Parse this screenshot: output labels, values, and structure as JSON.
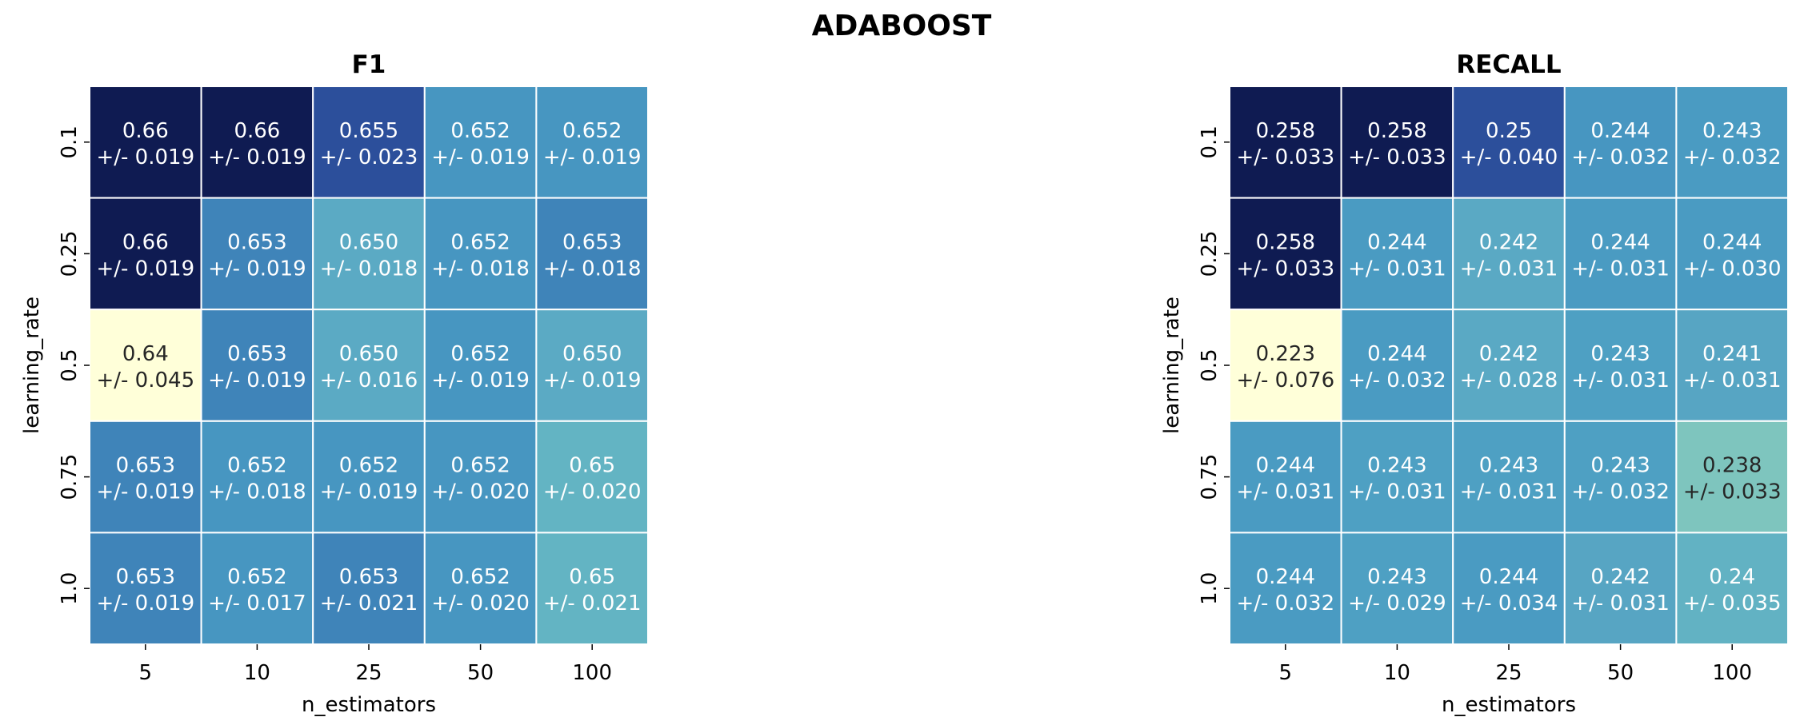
{
  "title": "ADABOOST",
  "chart_data": [
    {
      "type": "heatmap",
      "title": "F1",
      "xlabel": "n_estimators",
      "ylabel": "learning_rate",
      "x": [
        "5",
        "10",
        "25",
        "50",
        "100"
      ],
      "y": [
        "0.1",
        "0.25",
        "0.5",
        "0.75",
        "1.0"
      ],
      "values": [
        [
          0.66,
          0.66,
          0.655,
          0.652,
          0.652
        ],
        [
          0.66,
          0.653,
          0.65,
          0.652,
          0.653
        ],
        [
          0.64,
          0.653,
          0.65,
          0.652,
          0.65
        ],
        [
          0.653,
          0.652,
          0.652,
          0.652,
          0.65
        ],
        [
          0.653,
          0.652,
          0.653,
          0.652,
          0.65
        ]
      ],
      "labels": [
        [
          "0.66",
          "0.66",
          "0.655",
          "0.652",
          "0.652"
        ],
        [
          "0.66",
          "0.653",
          "0.650",
          "0.652",
          "0.653"
        ],
        [
          "0.64",
          "0.653",
          "0.650",
          "0.652",
          "0.650"
        ],
        [
          "0.653",
          "0.652",
          "0.652",
          "0.652",
          "0.65"
        ],
        [
          "0.653",
          "0.652",
          "0.653",
          "0.652",
          "0.65"
        ]
      ],
      "errors": [
        [
          "+/- 0.019",
          "+/- 0.019",
          "+/- 0.023",
          "+/- 0.019",
          "+/- 0.019"
        ],
        [
          "+/- 0.019",
          "+/- 0.019",
          "+/- 0.018",
          "+/- 0.018",
          "+/- 0.018"
        ],
        [
          "+/- 0.045",
          "+/- 0.019",
          "+/- 0.016",
          "+/- 0.019",
          "+/- 0.019"
        ],
        [
          "+/- 0.019",
          "+/- 0.018",
          "+/- 0.019",
          "+/- 0.020",
          "+/- 0.020"
        ],
        [
          "+/- 0.019",
          "+/- 0.017",
          "+/- 0.021",
          "+/- 0.020",
          "+/- 0.021"
        ]
      ],
      "cell_colors": [
        [
          "#0f1b52",
          "#0f1b52",
          "#2c4f9b",
          "#4796c1",
          "#4796c1"
        ],
        [
          "#0f1b52",
          "#3f84b9",
          "#5baac4",
          "#4796c1",
          "#3f84b9"
        ],
        [
          "#ffffd9",
          "#3f84b9",
          "#5baac4",
          "#4796c1",
          "#5baac4"
        ],
        [
          "#3f84b9",
          "#4796c1",
          "#4796c1",
          "#4796c1",
          "#63b4c3"
        ],
        [
          "#3f84b9",
          "#4796c1",
          "#3f84b9",
          "#4796c1",
          "#63b4c3"
        ]
      ],
      "text_colors": [
        [
          "#ffffff",
          "#ffffff",
          "#ffffff",
          "#ffffff",
          "#ffffff"
        ],
        [
          "#ffffff",
          "#ffffff",
          "#ffffff",
          "#ffffff",
          "#ffffff"
        ],
        [
          "#262626",
          "#ffffff",
          "#ffffff",
          "#ffffff",
          "#ffffff"
        ],
        [
          "#ffffff",
          "#ffffff",
          "#ffffff",
          "#ffffff",
          "#ffffff"
        ],
        [
          "#ffffff",
          "#ffffff",
          "#ffffff",
          "#ffffff",
          "#ffffff"
        ]
      ],
      "colormap": "YlGnBu",
      "grid": true,
      "colorbar": false
    },
    {
      "type": "heatmap",
      "title": "RECALL",
      "xlabel": "n_estimators",
      "ylabel": "learning_rate",
      "x": [
        "5",
        "10",
        "25",
        "50",
        "100"
      ],
      "y": [
        "0.1",
        "0.25",
        "0.5",
        "0.75",
        "1.0"
      ],
      "values": [
        [
          0.258,
          0.258,
          0.25,
          0.244,
          0.243
        ],
        [
          0.258,
          0.244,
          0.242,
          0.244,
          0.244
        ],
        [
          0.223,
          0.244,
          0.242,
          0.243,
          0.241
        ],
        [
          0.244,
          0.243,
          0.243,
          0.243,
          0.238
        ],
        [
          0.244,
          0.243,
          0.244,
          0.242,
          0.24
        ]
      ],
      "labels": [
        [
          "0.258",
          "0.258",
          "0.25",
          "0.244",
          "0.243"
        ],
        [
          "0.258",
          "0.244",
          "0.242",
          "0.244",
          "0.244"
        ],
        [
          "0.223",
          "0.244",
          "0.242",
          "0.243",
          "0.241"
        ],
        [
          "0.244",
          "0.243",
          "0.243",
          "0.243",
          "0.238"
        ],
        [
          "0.244",
          "0.243",
          "0.244",
          "0.242",
          "0.24"
        ]
      ],
      "errors": [
        [
          "+/- 0.033",
          "+/- 0.033",
          "+/- 0.040",
          "+/- 0.032",
          "+/- 0.032"
        ],
        [
          "+/- 0.033",
          "+/- 0.031",
          "+/- 0.031",
          "+/- 0.031",
          "+/- 0.030"
        ],
        [
          "+/- 0.076",
          "+/- 0.032",
          "+/- 0.028",
          "+/- 0.031",
          "+/- 0.031"
        ],
        [
          "+/- 0.031",
          "+/- 0.031",
          "+/- 0.031",
          "+/- 0.032",
          "+/- 0.033"
        ],
        [
          "+/- 0.032",
          "+/- 0.029",
          "+/- 0.034",
          "+/- 0.031",
          "+/- 0.035"
        ]
      ],
      "cell_colors": [
        [
          "#0f1b52",
          "#0f1b52",
          "#2c4f9b",
          "#4796c1",
          "#4a9bc2"
        ],
        [
          "#0f1b52",
          "#4a9bc2",
          "#5aa9c4",
          "#4a9bc2",
          "#4a9bc2"
        ],
        [
          "#ffffd9",
          "#4a9bc2",
          "#5aa9c4",
          "#4ea0c3",
          "#57a5c3"
        ],
        [
          "#4a9bc2",
          "#4ea0c3",
          "#4ea0c3",
          "#4ea0c3",
          "#7ec5be"
        ],
        [
          "#4a9bc2",
          "#4ea0c3",
          "#4a9bc2",
          "#57a5c3",
          "#62b2c3"
        ]
      ],
      "text_colors": [
        [
          "#ffffff",
          "#ffffff",
          "#ffffff",
          "#ffffff",
          "#ffffff"
        ],
        [
          "#ffffff",
          "#ffffff",
          "#ffffff",
          "#ffffff",
          "#ffffff"
        ],
        [
          "#262626",
          "#ffffff",
          "#ffffff",
          "#ffffff",
          "#ffffff"
        ],
        [
          "#ffffff",
          "#ffffff",
          "#ffffff",
          "#ffffff",
          "#262626"
        ],
        [
          "#ffffff",
          "#ffffff",
          "#ffffff",
          "#ffffff",
          "#ffffff"
        ]
      ],
      "colormap": "YlGnBu",
      "grid": true,
      "colorbar": false
    }
  ]
}
